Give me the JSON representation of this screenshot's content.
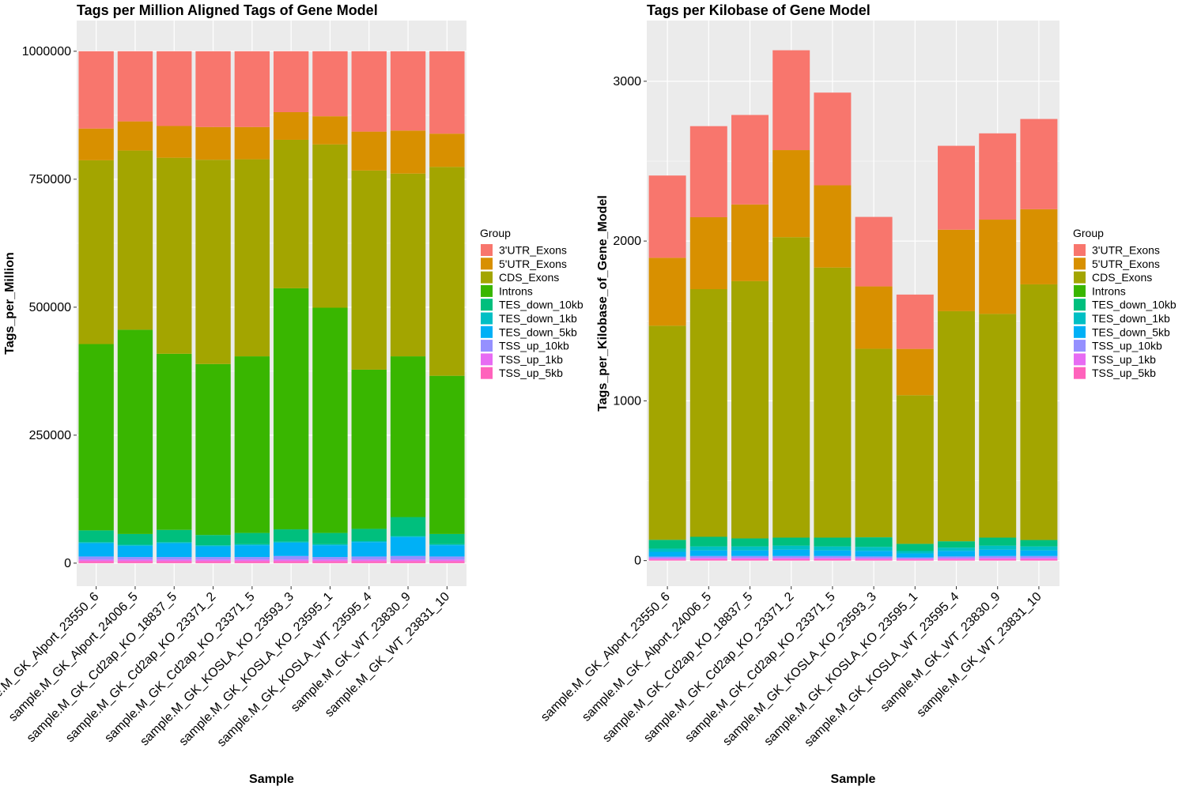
{
  "chart_data": [
    {
      "type": "bar",
      "stacked": true,
      "title": "Tags per Million Aligned Tags of Gene Model",
      "xlabel": "Sample",
      "ylabel": "Tags_per_Million",
      "ylim": [
        -45000,
        1060000
      ],
      "yticks": [
        0,
        250000,
        500000,
        750000,
        1000000
      ],
      "ytick_labels": [
        "0",
        "250000",
        "500000",
        "750000",
        "1000000"
      ],
      "legend_title": "Group",
      "categories": [
        "sample.M_GK_Alport_23550_6",
        "sample.M_GK_Alport_24006_5",
        "sample.M_GK_Cd2ap_KO_18837_5",
        "sample.M_GK_Cd2ap_KO_23371_2",
        "sample.M_GK_Cd2ap_KO_23371_5",
        "sample.M_GK_KOSLA_KO_23593_3",
        "sample.M_GK_KOSLA_KO_23595_1",
        "sample.M_GK_KOSLA_WT_23595_4",
        "sample.M_GK_WT_23830_9",
        "sample.M_GK_WT_23831_10"
      ],
      "series": [
        {
          "name": "TSS_up_5kb",
          "values": [
            4000,
            4000,
            4000,
            4000,
            4000,
            4000,
            4000,
            4000,
            4000,
            4000
          ]
        },
        {
          "name": "TSS_up_1kb",
          "values": [
            3000,
            3000,
            3000,
            3000,
            3000,
            3000,
            3000,
            3000,
            3000,
            3000
          ]
        },
        {
          "name": "TSS_up_10kb",
          "values": [
            6000,
            5000,
            5000,
            5000,
            5000,
            7000,
            5000,
            6000,
            7000,
            6000
          ]
        },
        {
          "name": "TES_down_5kb",
          "values": [
            26000,
            22000,
            27000,
            21000,
            23000,
            26000,
            23000,
            28000,
            37000,
            22000
          ]
        },
        {
          "name": "TES_down_1kb",
          "values": [
            2000,
            2000,
            2000,
            2000,
            2000,
            2000,
            2000,
            2000,
            2000,
            2000
          ]
        },
        {
          "name": "TES_down_10kb",
          "values": [
            23000,
            21000,
            24000,
            20000,
            22000,
            24000,
            22000,
            24000,
            37000,
            20000
          ]
        },
        {
          "name": "Introns",
          "values": [
            364000,
            399000,
            344000,
            334000,
            345000,
            471000,
            440000,
            311000,
            314000,
            309000
          ]
        },
        {
          "name": "CDS_Exons",
          "values": [
            359000,
            350000,
            383000,
            399000,
            385000,
            290000,
            319000,
            389000,
            357000,
            408000
          ]
        },
        {
          "name": "5'UTR_Exons",
          "values": [
            62000,
            57000,
            62000,
            64000,
            63000,
            54000,
            55000,
            76000,
            84000,
            65000
          ]
        },
        {
          "name": "3'UTR_Exons",
          "values": [
            151000,
            137000,
            146000,
            148000,
            148000,
            119000,
            127000,
            157000,
            155000,
            161000
          ]
        }
      ]
    },
    {
      "type": "bar",
      "stacked": true,
      "title": "Tags per Kilobase of Gene Model",
      "xlabel": "Sample",
      "ylabel": "Tags_per_Kilobase_of_Gene_Model",
      "ylim": [
        -160,
        3380
      ],
      "yticks": [
        0,
        1000,
        2000,
        3000
      ],
      "ytick_labels": [
        "0",
        "1000",
        "2000",
        "3000"
      ],
      "legend_title": "Group",
      "categories": [
        "sample.M_GK_Alport_23550_6",
        "sample.M_GK_Alport_24006_5",
        "sample.M_GK_Cd2ap_KO_18837_5",
        "sample.M_GK_Cd2ap_KO_23371_2",
        "sample.M_GK_Cd2ap_KO_23371_5",
        "sample.M_GK_KOSLA_KO_23593_3",
        "sample.M_GK_KOSLA_KO_23595_1",
        "sample.M_GK_KOSLA_WT_23595_4",
        "sample.M_GK_WT_23830_9",
        "sample.M_GK_WT_23831_10"
      ],
      "series": [
        {
          "name": "TSS_up_5kb",
          "values": [
            7,
            8,
            8,
            8,
            8,
            7,
            6,
            7,
            8,
            8
          ]
        },
        {
          "name": "TSS_up_1kb",
          "values": [
            8,
            9,
            9,
            9,
            9,
            8,
            6,
            8,
            9,
            9
          ]
        },
        {
          "name": "TSS_up_10kb",
          "values": [
            10,
            12,
            12,
            12,
            12,
            11,
            8,
            11,
            12,
            12
          ]
        },
        {
          "name": "TES_down_5kb",
          "values": [
            30,
            35,
            35,
            40,
            35,
            35,
            25,
            35,
            40,
            35
          ]
        },
        {
          "name": "TES_down_1kb",
          "values": [
            20,
            25,
            25,
            25,
            25,
            25,
            15,
            20,
            25,
            25
          ]
        },
        {
          "name": "TES_down_10kb",
          "values": [
            55,
            60,
            50,
            50,
            55,
            60,
            45,
            40,
            50,
            40
          ]
        },
        {
          "name": "Introns",
          "values": [
            0,
            0,
            0,
            0,
            0,
            0,
            0,
            0,
            0,
            0
          ]
        },
        {
          "name": "CDS_Exons",
          "values": [
            1340,
            1550,
            1610,
            1880,
            1690,
            1180,
            930,
            1440,
            1400,
            1600
          ]
        },
        {
          "name": "5'UTR_Exons",
          "values": [
            425,
            450,
            480,
            545,
            515,
            390,
            290,
            510,
            590,
            470
          ]
        },
        {
          "name": "3'UTR_Exons",
          "values": [
            515,
            570,
            560,
            625,
            580,
            435,
            340,
            525,
            540,
            565
          ]
        }
      ]
    }
  ],
  "colors": {
    "3'UTR_Exons": "#F8766D",
    "5'UTR_Exons": "#D89000",
    "CDS_Exons": "#A3A500",
    "Introns": "#39B600",
    "TES_down_10kb": "#00BF7D",
    "TES_down_1kb": "#00BFC4",
    "TES_down_5kb": "#00B0F6",
    "TSS_up_10kb": "#9590FF",
    "TSS_up_1kb": "#E76BF3",
    "TSS_up_5kb": "#FF62BC"
  },
  "legend_order": [
    "3'UTR_Exons",
    "5'UTR_Exons",
    "CDS_Exons",
    "Introns",
    "TES_down_10kb",
    "TES_down_1kb",
    "TES_down_5kb",
    "TSS_up_10kb",
    "TSS_up_1kb",
    "TSS_up_5kb"
  ]
}
